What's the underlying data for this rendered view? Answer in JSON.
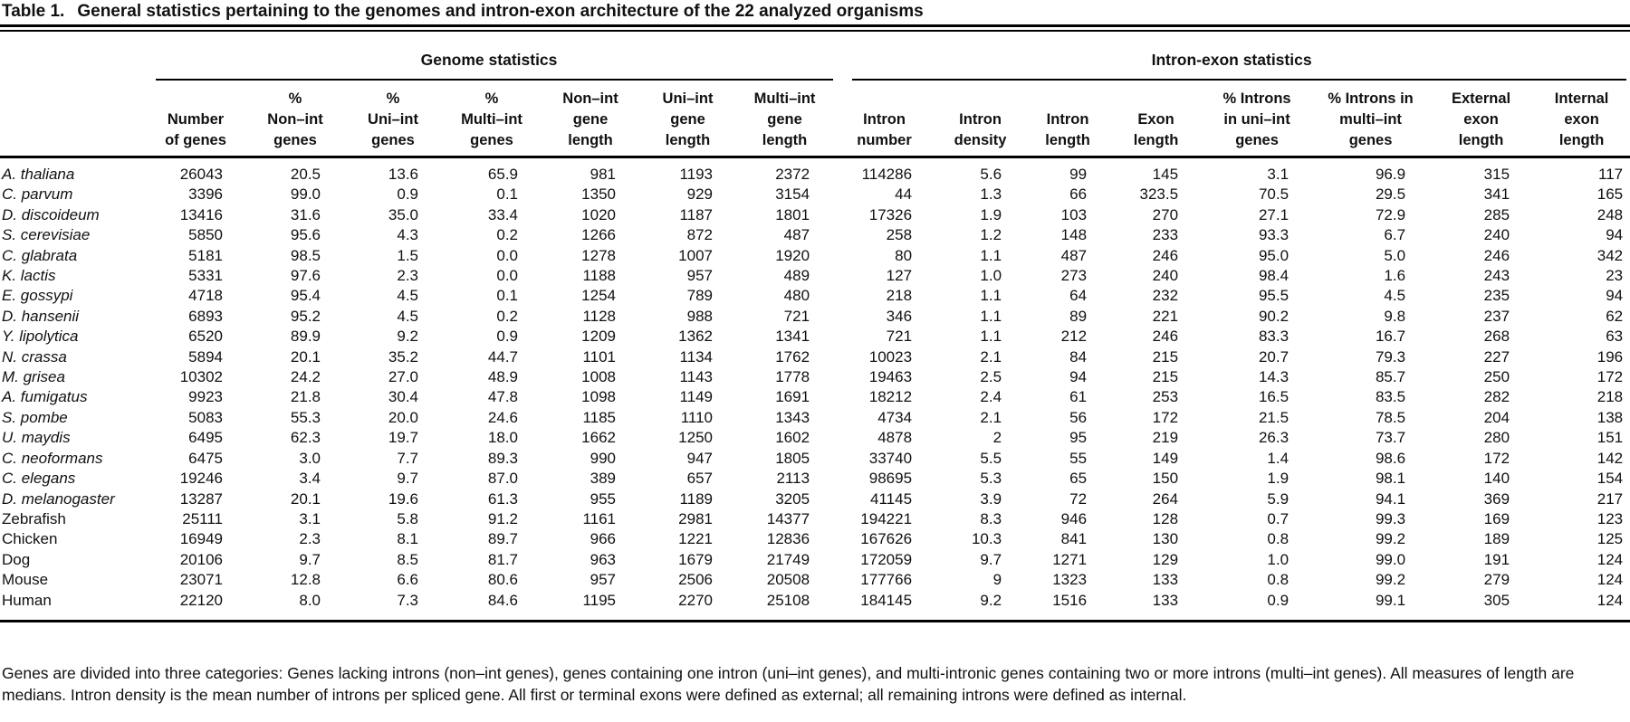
{
  "title": {
    "label": "Table 1.",
    "caption": "General statistics pertaining to the genomes and intron-exon architecture of the 22 analyzed organisms"
  },
  "table": {
    "group_headers": [
      {
        "label": "Genome statistics"
      },
      {
        "label": "Intron-exon statistics"
      }
    ],
    "columns": [
      {
        "id": "organism",
        "header": ""
      },
      {
        "id": "number_of_genes",
        "header": "Number\nof genes"
      },
      {
        "id": "pct_non_int_genes",
        "header": "%\nNon–int\ngenes"
      },
      {
        "id": "pct_uni_int_genes",
        "header": "%\nUni–int\ngenes"
      },
      {
        "id": "pct_multi_int_genes",
        "header": "%\nMulti–int\ngenes"
      },
      {
        "id": "non_int_gene_length",
        "header": "Non–int\ngene\nlength"
      },
      {
        "id": "uni_int_gene_length",
        "header": "Uni–int\ngene\nlength"
      },
      {
        "id": "multi_int_gene_length",
        "header": "Multi–int\ngene\nlength"
      },
      {
        "id": "intron_number",
        "header": "Intron\nnumber"
      },
      {
        "id": "intron_density",
        "header": "Intron\ndensity"
      },
      {
        "id": "intron_length",
        "header": "Intron\nlength"
      },
      {
        "id": "exon_length",
        "header": "Exon\nlength"
      },
      {
        "id": "pct_introns_in_uni_int_genes",
        "header": "% Introns\nin uni–int\ngenes"
      },
      {
        "id": "pct_introns_in_multi_int_genes",
        "header": "% Introns in\nmulti–int\ngenes"
      },
      {
        "id": "external_exon_length",
        "header": "External\nexon\nlength"
      },
      {
        "id": "internal_exon_length",
        "header": "Internal\nexon\nlength"
      }
    ],
    "rows": [
      {
        "organism": "A. thaliana",
        "italic": true,
        "values": [
          "26043",
          "20.5",
          "13.6",
          "65.9",
          "981",
          "1193",
          "2372",
          "114286",
          "5.6",
          "99",
          "145",
          "3.1",
          "96.9",
          "315",
          "117"
        ]
      },
      {
        "organism": "C. parvum",
        "italic": true,
        "values": [
          "3396",
          "99.0",
          "0.9",
          "0.1",
          "1350",
          "929",
          "3154",
          "44",
          "1.3",
          "66",
          "323.5",
          "70.5",
          "29.5",
          "341",
          "165"
        ]
      },
      {
        "organism": "D. discoideum",
        "italic": true,
        "values": [
          "13416",
          "31.6",
          "35.0",
          "33.4",
          "1020",
          "1187",
          "1801",
          "17326",
          "1.9",
          "103",
          "270",
          "27.1",
          "72.9",
          "285",
          "248"
        ]
      },
      {
        "organism": "S. cerevisiae",
        "italic": true,
        "values": [
          "5850",
          "95.6",
          "4.3",
          "0.2",
          "1266",
          "872",
          "487",
          "258",
          "1.2",
          "148",
          "233",
          "93.3",
          "6.7",
          "240",
          "94"
        ]
      },
      {
        "organism": "C. glabrata",
        "italic": true,
        "values": [
          "5181",
          "98.5",
          "1.5",
          "0.0",
          "1278",
          "1007",
          "1920",
          "80",
          "1.1",
          "487",
          "246",
          "95.0",
          "5.0",
          "246",
          "342"
        ]
      },
      {
        "organism": "K. lactis",
        "italic": true,
        "values": [
          "5331",
          "97.6",
          "2.3",
          "0.0",
          "1188",
          "957",
          "489",
          "127",
          "1.0",
          "273",
          "240",
          "98.4",
          "1.6",
          "243",
          "23"
        ]
      },
      {
        "organism": "E. gossypi",
        "italic": true,
        "values": [
          "4718",
          "95.4",
          "4.5",
          "0.1",
          "1254",
          "789",
          "480",
          "218",
          "1.1",
          "64",
          "232",
          "95.5",
          "4.5",
          "235",
          "94"
        ]
      },
      {
        "organism": "D. hansenii",
        "italic": true,
        "values": [
          "6893",
          "95.2",
          "4.5",
          "0.2",
          "1128",
          "988",
          "721",
          "346",
          "1.1",
          "89",
          "221",
          "90.2",
          "9.8",
          "237",
          "62"
        ]
      },
      {
        "organism": "Y. lipolytica",
        "italic": true,
        "values": [
          "6520",
          "89.9",
          "9.2",
          "0.9",
          "1209",
          "1362",
          "1341",
          "721",
          "1.1",
          "212",
          "246",
          "83.3",
          "16.7",
          "268",
          "63"
        ]
      },
      {
        "organism": "N. crassa",
        "italic": true,
        "values": [
          "5894",
          "20.1",
          "35.2",
          "44.7",
          "1101",
          "1134",
          "1762",
          "10023",
          "2.1",
          "84",
          "215",
          "20.7",
          "79.3",
          "227",
          "196"
        ]
      },
      {
        "organism": "M. grisea",
        "italic": true,
        "values": [
          "10302",
          "24.2",
          "27.0",
          "48.9",
          "1008",
          "1143",
          "1778",
          "19463",
          "2.5",
          "94",
          "215",
          "14.3",
          "85.7",
          "250",
          "172"
        ]
      },
      {
        "organism": "A. fumigatus",
        "italic": true,
        "values": [
          "9923",
          "21.8",
          "30.4",
          "47.8",
          "1098",
          "1149",
          "1691",
          "18212",
          "2.4",
          "61",
          "253",
          "16.5",
          "83.5",
          "282",
          "218"
        ]
      },
      {
        "organism": "S. pombe",
        "italic": true,
        "values": [
          "5083",
          "55.3",
          "20.0",
          "24.6",
          "1185",
          "1110",
          "1343",
          "4734",
          "2.1",
          "56",
          "172",
          "21.5",
          "78.5",
          "204",
          "138"
        ]
      },
      {
        "organism": "U. maydis",
        "italic": true,
        "values": [
          "6495",
          "62.3",
          "19.7",
          "18.0",
          "1662",
          "1250",
          "1602",
          "4878",
          "2",
          "95",
          "219",
          "26.3",
          "73.7",
          "280",
          "151"
        ]
      },
      {
        "organism": "C. neoformans",
        "italic": true,
        "values": [
          "6475",
          "3.0",
          "7.7",
          "89.3",
          "990",
          "947",
          "1805",
          "33740",
          "5.5",
          "55",
          "149",
          "1.4",
          "98.6",
          "172",
          "142"
        ]
      },
      {
        "organism": "C. elegans",
        "italic": true,
        "values": [
          "19246",
          "3.4",
          "9.7",
          "87.0",
          "389",
          "657",
          "2113",
          "98695",
          "5.3",
          "65",
          "150",
          "1.9",
          "98.1",
          "140",
          "154"
        ]
      },
      {
        "organism": "D. melanogaster",
        "italic": true,
        "values": [
          "13287",
          "20.1",
          "19.6",
          "61.3",
          "955",
          "1189",
          "3205",
          "41145",
          "3.9",
          "72",
          "264",
          "5.9",
          "94.1",
          "369",
          "217"
        ]
      },
      {
        "organism": "Zebrafish",
        "italic": false,
        "values": [
          "25111",
          "3.1",
          "5.8",
          "91.2",
          "1161",
          "2981",
          "14377",
          "194221",
          "8.3",
          "946",
          "128",
          "0.7",
          "99.3",
          "169",
          "123"
        ]
      },
      {
        "organism": "Chicken",
        "italic": false,
        "values": [
          "16949",
          "2.3",
          "8.1",
          "89.7",
          "966",
          "1221",
          "12836",
          "167626",
          "10.3",
          "841",
          "130",
          "0.8",
          "99.2",
          "189",
          "125"
        ]
      },
      {
        "organism": "Dog",
        "italic": false,
        "values": [
          "20106",
          "9.7",
          "8.5",
          "81.7",
          "963",
          "1679",
          "21749",
          "172059",
          "9.7",
          "1271",
          "129",
          "1.0",
          "99.0",
          "191",
          "124"
        ]
      },
      {
        "organism": "Mouse",
        "italic": false,
        "values": [
          "23071",
          "12.8",
          "6.6",
          "80.6",
          "957",
          "2506",
          "20508",
          "177766",
          "9",
          "1323",
          "133",
          "0.8",
          "99.2",
          "279",
          "124"
        ]
      },
      {
        "organism": "Human",
        "italic": false,
        "values": [
          "22120",
          "8.0",
          "7.3",
          "84.6",
          "1195",
          "2270",
          "25108",
          "184145",
          "9.2",
          "1516",
          "133",
          "0.9",
          "99.1",
          "305",
          "124"
        ]
      }
    ]
  },
  "footnote": "Genes are divided into three categories: Genes lacking introns (non–int genes), genes containing one intron (uni–int genes), and multi-intronic genes containing two or more introns (multi–int genes). All measures of length are medians. Intron density is the mean number of introns per spliced gene. All first or terminal exons were defined as external; all remaining introns were defined as internal."
}
